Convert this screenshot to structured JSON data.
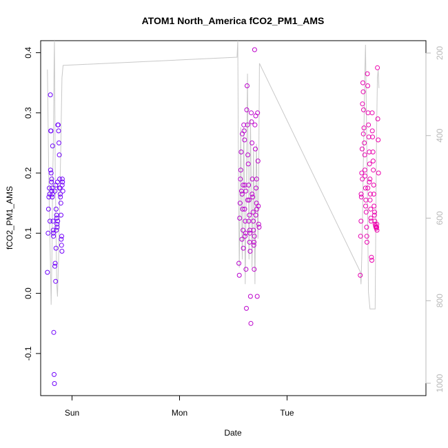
{
  "chart_data": {
    "type": "scatter",
    "title": "ATOM1 North_America fCO2_PM1_AMS",
    "xlabel": "Date",
    "ylabel": "fCO2_PM1_AMS",
    "x_axis": {
      "range": [
        "Sat 17:00",
        "Wed 07:00"
      ],
      "ticks": [
        {
          "value": "Sun 00:00",
          "label": "Sun"
        },
        {
          "value": "Mon 00:00",
          "label": "Mon"
        },
        {
          "value": "Tue 00:00",
          "label": "Tue"
        }
      ]
    },
    "y_axis": {
      "range": [
        -0.17,
        0.42
      ],
      "ticks": [
        -0.1,
        0.0,
        0.1,
        0.2,
        0.3,
        0.4
      ]
    },
    "y2_axis": {
      "range": [
        1030,
        170
      ],
      "reversed": true,
      "ticks": [
        200,
        400,
        600,
        800,
        1000
      ],
      "color": "#b8b8b8"
    },
    "colors": {
      "background": "#ffffff",
      "points_start": "#6a00ff",
      "points_end": "#ff00a0",
      "line": "#c8c8c8",
      "axis": "#000000",
      "secondary_axis": "#b8b8b8"
    },
    "series": [
      {
        "kind": "points",
        "points": [
          [
            "Sat 18:30",
            0.035
          ],
          [
            "Sat 18:40",
            0.1
          ],
          [
            "Sat 18:45",
            0.14
          ],
          [
            "Sat 18:50",
            0.16
          ],
          [
            "Sat 18:55",
            0.175
          ],
          [
            "Sat 19:00",
            0.165
          ],
          [
            "Sat 19:05",
            0.12
          ],
          [
            "Sat 19:10",
            0.33
          ],
          [
            "Sat 19:15",
            0.27
          ],
          [
            "Sat 19:20",
            0.2
          ],
          [
            "Sat 19:25",
            0.185
          ],
          [
            "Sat 19:30",
            0.17
          ],
          [
            "Sat 19:35",
            0.16
          ],
          [
            "Sat 19:40",
            0.245
          ],
          [
            "Sat 19:45",
            0.12
          ],
          [
            "Sat 19:50",
            0.1
          ],
          [
            "Sat 19:55",
            -0.065
          ],
          [
            "Sat 20:00",
            -0.135
          ],
          [
            "Sat 20:05",
            -0.15
          ],
          [
            "Sat 20:10",
            0.045
          ],
          [
            "Sat 20:15",
            0.05
          ],
          [
            "Sat 20:20",
            0.02
          ],
          [
            "Sat 20:25",
            0.075
          ],
          [
            "Sat 20:30",
            0.105
          ],
          [
            "Sat 20:35",
            0.125
          ],
          [
            "Sat 20:40",
            0.11
          ],
          [
            "Sat 20:45",
            0.185
          ],
          [
            "Sat 20:50",
            0.28
          ],
          [
            "Sat 20:55",
            0.28
          ],
          [
            "Sat 21:00",
            0.27
          ],
          [
            "Sat 21:05",
            0.25
          ],
          [
            "Sat 21:10",
            0.23
          ],
          [
            "Sat 21:15",
            0.19
          ],
          [
            "Sat 21:20",
            0.175
          ],
          [
            "Sat 21:25",
            0.16
          ],
          [
            "Sat 21:30",
            0.15
          ],
          [
            "Sat 21:35",
            0.09
          ],
          [
            "Sat 21:40",
            0.08
          ],
          [
            "Sat 21:45",
            0.07
          ],
          [
            "Sat 21:50",
            0.19
          ],
          [
            "Sat 19:12",
            0.205
          ],
          [
            "Sat 19:18",
            0.27
          ],
          [
            "Sat 19:28",
            0.19
          ],
          [
            "Sat 19:33",
            0.175
          ],
          [
            "Sat 19:38",
            0.165
          ],
          [
            "Sat 19:48",
            0.105
          ],
          [
            "Sat 19:52",
            0.095
          ],
          [
            "Sat 20:12",
            0.17
          ],
          [
            "Sat 20:22",
            0.18
          ],
          [
            "Sat 20:27",
            0.14
          ],
          [
            "Sat 20:33",
            0.13
          ],
          [
            "Sat 20:38",
            0.115
          ],
          [
            "Sat 20:48",
            0.12
          ],
          [
            "Sat 21:12",
            0.175
          ],
          [
            "Sat 21:22",
            0.165
          ],
          [
            "Sat 21:32",
            0.13
          ],
          [
            "Sat 21:42",
            0.095
          ],
          [
            "Sat 21:48",
            0.18
          ],
          [
            "Sat 21:53",
            0.185
          ],
          [
            "Sat 21:57",
            0.17
          ],
          [
            "Mon 13:15",
            0.05
          ],
          [
            "Mon 13:20",
            0.03
          ],
          [
            "Mon 13:25",
            0.125
          ],
          [
            "Mon 13:30",
            0.15
          ],
          [
            "Mon 13:35",
            0.19
          ],
          [
            "Mon 13:40",
            0.205
          ],
          [
            "Mon 13:45",
            0.235
          ],
          [
            "Mon 13:50",
            0.17
          ],
          [
            "Mon 13:55",
            0.09
          ],
          [
            "Mon 14:00",
            0.265
          ],
          [
            "Mon 14:05",
            0.14
          ],
          [
            "Mon 14:10",
            0.105
          ],
          [
            "Mon 14:15",
            0.075
          ],
          [
            "Mon 14:20",
            0.28
          ],
          [
            "Mon 14:25",
            0.27
          ],
          [
            "Mon 14:30",
            0.255
          ],
          [
            "Mon 14:35",
            0.18
          ],
          [
            "Mon 14:40",
            0.12
          ],
          [
            "Mon 14:45",
            0.1
          ],
          [
            "Mon 14:50",
            0.04
          ],
          [
            "Mon 14:55",
            -0.025
          ],
          [
            "Mon 15:00",
            0.305
          ],
          [
            "Mon 15:05",
            0.345
          ],
          [
            "Mon 15:10",
            0.28
          ],
          [
            "Mon 15:15",
            0.23
          ],
          [
            "Mon 15:20",
            0.215
          ],
          [
            "Mon 15:25",
            0.18
          ],
          [
            "Mon 15:30",
            0.155
          ],
          [
            "Mon 15:35",
            0.13
          ],
          [
            "Mon 15:40",
            0.105
          ],
          [
            "Mon 15:45",
            0.07
          ],
          [
            "Mon 15:50",
            -0.005
          ],
          [
            "Mon 15:55",
            -0.05
          ],
          [
            "Mon 16:00",
            0.3
          ],
          [
            "Mon 16:05",
            0.285
          ],
          [
            "Mon 16:10",
            0.25
          ],
          [
            "Mon 16:15",
            0.19
          ],
          [
            "Mon 16:20",
            0.16
          ],
          [
            "Mon 16:25",
            0.135
          ],
          [
            "Mon 16:30",
            0.105
          ],
          [
            "Mon 16:35",
            0.08
          ],
          [
            "Mon 16:40",
            0.04
          ],
          [
            "Mon 16:45",
            0.405
          ],
          [
            "Mon 16:50",
            0.28
          ],
          [
            "Mon 16:55",
            0.24
          ],
          [
            "Mon 17:00",
            0.295
          ],
          [
            "Mon 17:05",
            0.175
          ],
          [
            "Mon 17:10",
            0.15
          ],
          [
            "Mon 17:15",
            0.14
          ],
          [
            "Mon 17:20",
            -0.005
          ],
          [
            "Mon 17:25",
            0.3
          ],
          [
            "Mon 17:30",
            0.22
          ],
          [
            "Mon 17:35",
            0.145
          ],
          [
            "Mon 17:40",
            0.115
          ],
          [
            "Mon 17:45",
            0.11
          ],
          [
            "Mon 13:58",
            0.165
          ],
          [
            "Mon 14:12",
            0.18
          ],
          [
            "Mon 14:32",
            0.14
          ],
          [
            "Mon 14:48",
            0.17
          ],
          [
            "Mon 15:12",
            0.155
          ],
          [
            "Mon 15:28",
            0.12
          ],
          [
            "Mon 15:42",
            0.1
          ],
          [
            "Mon 16:12",
            0.165
          ],
          [
            "Mon 16:28",
            0.12
          ],
          [
            "Mon 16:42",
            0.095
          ],
          [
            "Mon 17:02",
            0.13
          ],
          [
            "Mon 17:12",
            0.19
          ],
          [
            "Mon 14:38",
            0.095
          ],
          [
            "Mon 15:38",
            0.085
          ],
          [
            "Mon 16:38",
            0.085
          ],
          [
            "Tue 16:20",
            0.03
          ],
          [
            "Tue 16:25",
            0.095
          ],
          [
            "Tue 16:30",
            0.12
          ],
          [
            "Tue 16:35",
            0.16
          ],
          [
            "Tue 16:40",
            0.2
          ],
          [
            "Tue 16:45",
            0.24
          ],
          [
            "Tue 16:50",
            0.315
          ],
          [
            "Tue 16:55",
            0.35
          ],
          [
            "Tue 17:00",
            0.335
          ],
          [
            "Tue 17:05",
            0.305
          ],
          [
            "Tue 17:10",
            0.275
          ],
          [
            "Tue 17:15",
            0.25
          ],
          [
            "Tue 17:20",
            0.23
          ],
          [
            "Tue 17:25",
            0.195
          ],
          [
            "Tue 17:30",
            0.175
          ],
          [
            "Tue 17:35",
            0.155
          ],
          [
            "Tue 17:40",
            0.135
          ],
          [
            "Tue 17:45",
            0.11
          ],
          [
            "Tue 17:50",
            0.085
          ],
          [
            "Tue 17:55",
            0.365
          ],
          [
            "Tue 18:00",
            0.345
          ],
          [
            "Tue 18:05",
            0.3
          ],
          [
            "Tue 18:10",
            0.28
          ],
          [
            "Tue 18:15",
            0.26
          ],
          [
            "Tue 18:20",
            0.235
          ],
          [
            "Tue 18:25",
            0.215
          ],
          [
            "Tue 18:30",
            0.19
          ],
          [
            "Tue 18:35",
            0.165
          ],
          [
            "Tue 18:40",
            0.14
          ],
          [
            "Tue 18:45",
            0.12
          ],
          [
            "Tue 18:50",
            0.06
          ],
          [
            "Tue 18:55",
            0.055
          ],
          [
            "Tue 19:00",
            0.3
          ],
          [
            "Tue 19:05",
            0.26
          ],
          [
            "Tue 19:10",
            0.235
          ],
          [
            "Tue 19:15",
            0.205
          ],
          [
            "Tue 19:20",
            0.18
          ],
          [
            "Tue 19:25",
            0.145
          ],
          [
            "Tue 19:30",
            0.13
          ],
          [
            "Tue 19:35",
            0.12
          ],
          [
            "Tue 19:40",
            0.115
          ],
          [
            "Tue 19:45",
            0.112
          ],
          [
            "Tue 19:50",
            0.11
          ],
          [
            "Tue 19:55",
            0.108
          ],
          [
            "Tue 20:00",
            0.11
          ],
          [
            "Tue 20:05",
            0.105
          ],
          [
            "Tue 20:10",
            0.375
          ],
          [
            "Tue 20:15",
            0.29
          ],
          [
            "Tue 20:20",
            0.255
          ],
          [
            "Tue 20:25",
            0.2
          ],
          [
            "Tue 16:32",
            0.165
          ],
          [
            "Tue 16:48",
            0.19
          ],
          [
            "Tue 17:02",
            0.265
          ],
          [
            "Tue 17:22",
            0.205
          ],
          [
            "Tue 17:32",
            0.145
          ],
          [
            "Tue 17:48",
            0.095
          ],
          [
            "Tue 18:02",
            0.175
          ],
          [
            "Tue 18:22",
            0.185
          ],
          [
            "Tue 18:32",
            0.155
          ],
          [
            "Tue 18:42",
            0.125
          ],
          [
            "Tue 19:02",
            0.27
          ],
          [
            "Tue 19:12",
            0.22
          ],
          [
            "Tue 19:22",
            0.165
          ],
          [
            "Tue 19:32",
            0.135
          ],
          [
            "Tue 20:02",
            0.115
          ]
        ]
      },
      {
        "kind": "line",
        "axis": "y2",
        "points": [
          [
            "Sat 18:30",
            240
          ],
          [
            "Sat 18:50",
            520
          ],
          [
            "Sat 19:10",
            700
          ],
          [
            "Sat 19:20",
            810
          ],
          [
            "Sat 19:30",
            700
          ],
          [
            "Sat 19:40",
            520
          ],
          [
            "Sat 19:50",
            420
          ],
          [
            "Sat 20:00",
            220
          ],
          [
            "Sat 20:05",
            170
          ],
          [
            "Sat 20:15",
            480
          ],
          [
            "Sat 20:25",
            620
          ],
          [
            "Sat 20:35",
            760
          ],
          [
            "Sat 20:45",
            790
          ],
          [
            "Sat 21:00",
            700
          ],
          [
            "Sat 21:15",
            560
          ],
          [
            "Sat 21:30",
            420
          ],
          [
            "Sat 21:45",
            260
          ],
          [
            "Sat 22:00",
            230
          ],
          [
            "Mon 12:50",
            210
          ],
          [
            "Mon 13:00",
            170
          ],
          [
            "Mon 13:10",
            540
          ],
          [
            "Mon 13:20",
            720
          ],
          [
            "Mon 13:30",
            560
          ],
          [
            "Mon 13:40",
            380
          ],
          [
            "Mon 13:50",
            560
          ],
          [
            "Mon 14:00",
            700
          ],
          [
            "Mon 14:10",
            560
          ],
          [
            "Mon 14:20",
            380
          ],
          [
            "Mon 14:30",
            560
          ],
          [
            "Mon 14:40",
            760
          ],
          [
            "Mon 14:50",
            600
          ],
          [
            "Mon 15:00",
            420
          ],
          [
            "Mon 15:10",
            250
          ],
          [
            "Mon 15:20",
            520
          ],
          [
            "Mon 15:30",
            700
          ],
          [
            "Mon 15:40",
            560
          ],
          [
            "Mon 15:50",
            360
          ],
          [
            "Mon 16:00",
            520
          ],
          [
            "Mon 16:10",
            720
          ],
          [
            "Mon 16:20",
            590
          ],
          [
            "Mon 16:30",
            430
          ],
          [
            "Mon 16:40",
            600
          ],
          [
            "Mon 16:50",
            760
          ],
          [
            "Mon 17:00",
            560
          ],
          [
            "Mon 17:10",
            420
          ],
          [
            "Mon 17:20",
            560
          ],
          [
            "Mon 17:30",
            650
          ],
          [
            "Mon 17:40",
            520
          ],
          [
            "Mon 17:50",
            225
          ],
          [
            "Tue 16:20",
            730
          ],
          [
            "Tue 16:30",
            760
          ],
          [
            "Tue 16:40",
            700
          ],
          [
            "Tue 16:50",
            600
          ],
          [
            "Tue 17:00",
            480
          ],
          [
            "Tue 17:10",
            380
          ],
          [
            "Tue 17:20",
            260
          ],
          [
            "Tue 17:30",
            180
          ],
          [
            "Tue 17:40",
            300
          ],
          [
            "Tue 17:50",
            460
          ],
          [
            "Tue 18:00",
            600
          ],
          [
            "Tue 18:10",
            780
          ],
          [
            "Tue 18:20",
            800
          ],
          [
            "Tue 18:30",
            820
          ],
          [
            "Tue 18:40",
            820
          ],
          [
            "Tue 18:50",
            820
          ],
          [
            "Tue 19:00",
            820
          ],
          [
            "Tue 19:10",
            820
          ],
          [
            "Tue 19:20",
            820
          ],
          [
            "Tue 19:30",
            820
          ],
          [
            "Tue 19:40",
            820
          ],
          [
            "Tue 19:50",
            580
          ],
          [
            "Tue 20:00",
            380
          ],
          [
            "Tue 20:10",
            260
          ],
          [
            "Tue 20:20",
            240
          ],
          [
            "Tue 20:30",
            285
          ]
        ]
      }
    ]
  }
}
